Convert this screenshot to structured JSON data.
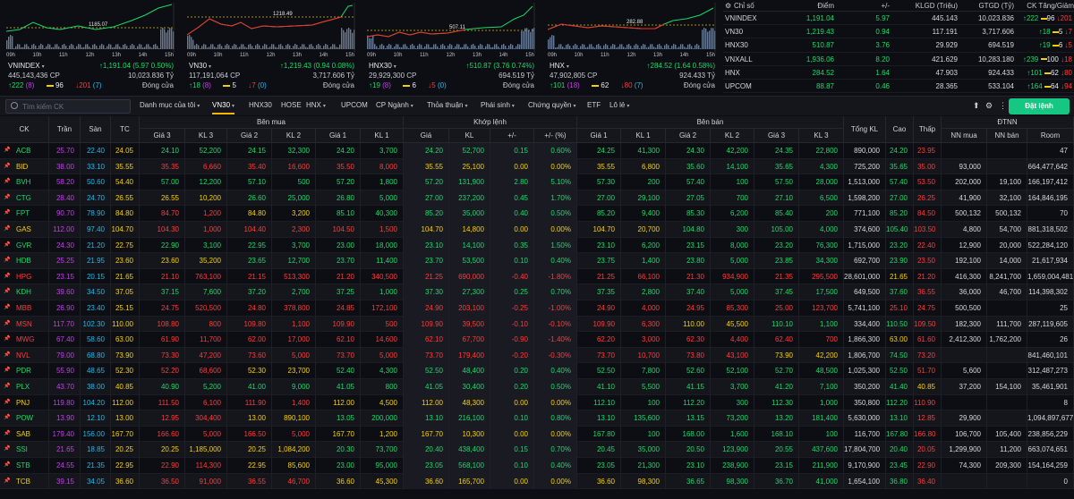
{
  "charts": [
    {
      "name": "VNINDEX",
      "value": "↑1,191.04 (5.97 0.50%)",
      "volume": "445,143,436 CP",
      "gtgd": "10,023.836 Tỷ",
      "up": "↑222",
      "up_ceil": "(8)",
      "ref": "96",
      "dn": "↓201",
      "dn_floor": "(7)",
      "status": "Đóng cửa",
      "ref_label": "1185.07",
      "times": [
        "09h",
        "10h",
        "11h",
        "12h",
        "13h",
        "14h",
        "15h"
      ]
    },
    {
      "name": "VN30",
      "value": "↑1,219.43 (0.94 0.08%)",
      "volume": "117,191,064 CP",
      "gtgd": "3,717.606 Tỷ",
      "up": "↑18",
      "up_ceil": "(8)",
      "ref": "5",
      "dn": "↓7",
      "dn_floor": "(0)",
      "status": "Đóng cửa",
      "ref_label": "1218.49",
      "times": [
        "09h",
        "10h",
        "11h",
        "12h",
        "13h",
        "14h",
        "15h"
      ]
    },
    {
      "name": "HNX30",
      "value": "↑510.87 (3.76 0.74%)",
      "volume": "29,929,300 CP",
      "gtgd": "694.519 Tỷ",
      "up": "↑19",
      "up_ceil": "(8)",
      "ref": "6",
      "dn": "↓5",
      "dn_floor": "(0)",
      "status": "Đóng cửa",
      "ref_label": "507.11",
      "times": [
        "09h",
        "10h",
        "11h",
        "12h",
        "13h",
        "14h",
        "15h"
      ]
    },
    {
      "name": "HNX",
      "value": "↑284.52 (1.64 0.58%)",
      "volume": "47,902,805 CP",
      "gtgd": "924.433 Tỷ",
      "up": "↑101",
      "up_ceil": "(18)",
      "ref": "62",
      "dn": "↓80",
      "dn_floor": "(7)",
      "status": "Đóng cửa",
      "ref_label": "282.88",
      "times": [
        "09h",
        "10h",
        "11h",
        "12h",
        "13h",
        "14h",
        "15h"
      ]
    }
  ],
  "index_table": {
    "headers": [
      "Chỉ số",
      "Điểm",
      "+/-",
      "KLGD (Triệu)",
      "GTGD (Tỷ)",
      "CK Tăng/Giảm"
    ],
    "rows": [
      {
        "name": "VNINDEX",
        "pt": "1,191.04",
        "chg": "5.97",
        "kl": "445.143",
        "gt": "10,023.836",
        "up": "↑222",
        "ref": "96",
        "dn": "↓201"
      },
      {
        "name": "VN30",
        "pt": "1,219.43",
        "chg": "0.94",
        "kl": "117.191",
        "gt": "3,717.606",
        "up": "↑18",
        "ref": "5",
        "dn": "↓7"
      },
      {
        "name": "HNX30",
        "pt": "510.87",
        "chg": "3.76",
        "kl": "29.929",
        "gt": "694.519",
        "up": "↑19",
        "ref": "6",
        "dn": "↓5"
      },
      {
        "name": "VNXALL",
        "pt": "1,936.06",
        "chg": "8.20",
        "kl": "421.629",
        "gt": "10,283.180",
        "up": "↑239",
        "ref": "100",
        "dn": "↓18"
      },
      {
        "name": "HNX",
        "pt": "284.52",
        "chg": "1.64",
        "kl": "47.903",
        "gt": "924.433",
        "up": "↑101",
        "ref": "62",
        "dn": "↓80"
      },
      {
        "name": "UPCOM",
        "pt": "88.87",
        "chg": "0.46",
        "kl": "28.365",
        "gt": "533.104",
        "up": "↑164",
        "ref": "64",
        "dn": "↓94"
      }
    ]
  },
  "toolbar": {
    "search_placeholder": "Tìm kiếm CK",
    "tabs": [
      "Danh mục của tôi",
      "VN30",
      "HNX30",
      "HOSE",
      "HNX",
      "UPCOM",
      "CP Ngành",
      "Thỏa thuận",
      "Phái sinh",
      "Chứng quyền",
      "ETF",
      "Lô lẻ"
    ],
    "buy_label": "Đặt lệnh"
  },
  "grid": {
    "group_headers": [
      "Bên mua",
      "Khớp lệnh",
      "Bên bán",
      "ĐTNN"
    ],
    "headers": [
      "CK",
      "Trần",
      "Sàn",
      "TC",
      "Giá 3",
      "KL 3",
      "Giá 2",
      "KL 2",
      "Giá 1",
      "KL 1",
      "Giá",
      "KL",
      "+/-",
      "+/- (%)",
      "Giá 1",
      "KL 1",
      "Giá 2",
      "KL 2",
      "Giá 3",
      "KL 3",
      "Tổng KL",
      "Cao",
      "Thấp",
      "NN mua",
      "NN bán",
      "Room"
    ],
    "rows": [
      [
        "ACB",
        "25.70",
        "22.40",
        "24.05",
        "24.10",
        "52,200",
        "24.15",
        "32,300",
        "24.20",
        "3,700",
        "24.20",
        "52,700",
        "0.15",
        "0.60%",
        "24.25",
        "41,300",
        "24.30",
        "42,200",
        "24.35",
        "22,800",
        "890,000",
        "24.20",
        "23.95",
        "",
        "",
        "47"
      ],
      [
        "BID",
        "38.00",
        "33.10",
        "35.55",
        "35.35",
        "6,660",
        "35.40",
        "16,600",
        "35.50",
        "8,000",
        "35.55",
        "25,100",
        "0.00",
        "0.00%",
        "35.55",
        "6,800",
        "35.60",
        "14,100",
        "35.65",
        "4,300",
        "725,200",
        "35.65",
        "35.00",
        "93,000",
        "",
        "664,477,642"
      ],
      [
        "BVH",
        "58.20",
        "50.60",
        "54.40",
        "57.00",
        "12,200",
        "57.10",
        "500",
        "57.20",
        "1,800",
        "57.20",
        "131,900",
        "2.80",
        "5.10%",
        "57.30",
        "200",
        "57.40",
        "100",
        "57.50",
        "28,000",
        "1,513,000",
        "57.40",
        "53.50",
        "202,000",
        "19,100",
        "166,197,412"
      ],
      [
        "CTG",
        "28.40",
        "24.70",
        "26.55",
        "26.55",
        "10,200",
        "26.60",
        "25,000",
        "26.80",
        "5,000",
        "27.00",
        "237,200",
        "0.45",
        "1.70%",
        "27.00",
        "29,100",
        "27.05",
        "700",
        "27.10",
        "6,500",
        "1,598,200",
        "27.00",
        "26.25",
        "41,900",
        "32,100",
        "164,846,195"
      ],
      [
        "FPT",
        "90.70",
        "78.90",
        "84.80",
        "84.70",
        "1,200",
        "84.80",
        "3,200",
        "85.10",
        "40,300",
        "85.20",
        "35,000",
        "0.40",
        "0.50%",
        "85.20",
        "9,400",
        "85.30",
        "6,200",
        "85.40",
        "200",
        "771,100",
        "85.20",
        "84.50",
        "500,132",
        "500,132",
        "70"
      ],
      [
        "GAS",
        "112.00",
        "97.40",
        "104.70",
        "104.30",
        "1,000",
        "104.40",
        "2,300",
        "104.50",
        "1,500",
        "104.70",
        "14,800",
        "0.00",
        "0.00%",
        "104.70",
        "20,700",
        "104.80",
        "300",
        "105.00",
        "4,000",
        "374,600",
        "105.40",
        "103.50",
        "4,800",
        "54,700",
        "881,318,502"
      ],
      [
        "GVR",
        "24.30",
        "21.20",
        "22.75",
        "22.90",
        "3,100",
        "22.95",
        "3,700",
        "23.00",
        "18,000",
        "23.10",
        "14,100",
        "0.35",
        "1.50%",
        "23.10",
        "6,200",
        "23.15",
        "8,000",
        "23.20",
        "76,300",
        "1,715,000",
        "23.20",
        "22.40",
        "12,900",
        "20,000",
        "522,284,120"
      ],
      [
        "HDB",
        "25.25",
        "21.95",
        "23.60",
        "23.60",
        "35,200",
        "23.65",
        "12,700",
        "23.70",
        "11,400",
        "23.70",
        "53,500",
        "0.10",
        "0.40%",
        "23.75",
        "1,400",
        "23.80",
        "5,000",
        "23.85",
        "34,300",
        "692,700",
        "23.90",
        "23.50",
        "192,100",
        "14,000",
        "21,617,934"
      ],
      [
        "HPG",
        "23.15",
        "20.15",
        "21.65",
        "21.10",
        "763,100",
        "21.15",
        "513,300",
        "21.20",
        "340,500",
        "21.25",
        "690,000",
        "-0.40",
        "-1.80%",
        "21.25",
        "66,100",
        "21.30",
        "934,900",
        "21.35",
        "295,500",
        "28,601,000",
        "21.65",
        "21.20",
        "416,300",
        "8,241,700",
        "1,659,004,481"
      ],
      [
        "KDH",
        "39.60",
        "34.50",
        "37.05",
        "37.15",
        "7,600",
        "37.20",
        "2,700",
        "37.25",
        "1,000",
        "37.30",
        "27,300",
        "0.25",
        "0.70%",
        "37.35",
        "2,800",
        "37.40",
        "5,000",
        "37.45",
        "17,500",
        "649,500",
        "37.60",
        "36.55",
        "36,000",
        "46,700",
        "114,398,302"
      ],
      [
        "MBB",
        "26.90",
        "23.40",
        "25.15",
        "24.75",
        "520,500",
        "24.80",
        "378,800",
        "24.85",
        "172,100",
        "24.90",
        "203,100",
        "-0.25",
        "-1.00%",
        "24.90",
        "4,000",
        "24.95",
        "85,300",
        "25.00",
        "123,700",
        "5,741,100",
        "25.10",
        "24.75",
        "500,500",
        "",
        "25"
      ],
      [
        "MSN",
        "117.70",
        "102.30",
        "110.00",
        "108.80",
        "800",
        "109.80",
        "1,100",
        "109.90",
        "500",
        "109.90",
        "39,500",
        "-0.10",
        "-0.10%",
        "109.90",
        "6,300",
        "110.00",
        "45,500",
        "110.10",
        "1,100",
        "334,400",
        "110.50",
        "109.50",
        "182,300",
        "111,700",
        "287,119,605"
      ],
      [
        "MWG",
        "67.40",
        "58.60",
        "63.00",
        "61.90",
        "11,700",
        "62.00",
        "17,000",
        "62.10",
        "14,600",
        "62.10",
        "67,700",
        "-0.90",
        "-1.40%",
        "62.20",
        "3,000",
        "62.30",
        "4,400",
        "62.40",
        "700",
        "1,866,300",
        "63.00",
        "61.60",
        "2,412,300",
        "1,762,200",
        "26"
      ],
      [
        "NVL",
        "79.00",
        "68.80",
        "73.90",
        "73.30",
        "47,200",
        "73.60",
        "5,000",
        "73.70",
        "5,000",
        "73.70",
        "179,400",
        "-0.20",
        "-0.30%",
        "73.70",
        "10,700",
        "73.80",
        "43,100",
        "73.90",
        "42,200",
        "1,806,700",
        "74.50",
        "73.20",
        "",
        "",
        "841,460,101"
      ],
      [
        "PDR",
        "55.90",
        "48.65",
        "52.30",
        "52.20",
        "68,600",
        "52.30",
        "23,700",
        "52.40",
        "4,300",
        "52.50",
        "48,400",
        "0.20",
        "0.40%",
        "52.50",
        "7,800",
        "52.60",
        "52,100",
        "52.70",
        "48,500",
        "1,025,300",
        "52.50",
        "51.70",
        "5,600",
        "",
        "312,487,273"
      ],
      [
        "PLX",
        "43.70",
        "38.00",
        "40.85",
        "40.90",
        "5,200",
        "41.00",
        "9,000",
        "41.05",
        "800",
        "41.05",
        "30,400",
        "0.20",
        "0.50%",
        "41.10",
        "5,500",
        "41.15",
        "3,700",
        "41.20",
        "7,100",
        "350,200",
        "41.40",
        "40.85",
        "37,200",
        "154,100",
        "35,461,901"
      ],
      [
        "PNJ",
        "119.80",
        "104.20",
        "112.00",
        "111.50",
        "6,100",
        "111.90",
        "1,400",
        "112.00",
        "4,500",
        "112.00",
        "48,300",
        "0.00",
        "0.00%",
        "112.10",
        "100",
        "112.20",
        "300",
        "112.30",
        "1,000",
        "350,800",
        "112.20",
        "110.90",
        "",
        "",
        "8"
      ],
      [
        "POW",
        "13.90",
        "12.10",
        "13.00",
        "12.95",
        "304,400",
        "13.00",
        "890,100",
        "13.05",
        "200,000",
        "13.10",
        "216,100",
        "0.10",
        "0.80%",
        "13.10",
        "135,600",
        "13.15",
        "73,200",
        "13.20",
        "181,400",
        "5,630,000",
        "13.10",
        "12.85",
        "29,900",
        "",
        "1,094,897,677"
      ],
      [
        "SAB",
        "179.40",
        "156.00",
        "167.70",
        "166.60",
        "5,000",
        "166.50",
        "5,000",
        "167.70",
        "1,200",
        "167.70",
        "10,300",
        "0.00",
        "0.00%",
        "167.80",
        "100",
        "168.00",
        "1,600",
        "168.10",
        "100",
        "116,700",
        "167.80",
        "166.80",
        "106,700",
        "105,400",
        "238,856,229"
      ],
      [
        "SSI",
        "21.65",
        "18.85",
        "20.25",
        "20.25",
        "1,185,000",
        "20.25",
        "1,084,200",
        "20.30",
        "73,700",
        "20.40",
        "438,400",
        "0.15",
        "0.70%",
        "20.45",
        "35,000",
        "20.50",
        "123,900",
        "20.55",
        "437,600",
        "17,804,700",
        "20.40",
        "20.05",
        "1,299,900",
        "11,200",
        "663,074,651"
      ],
      [
        "STB",
        "24.55",
        "21.35",
        "22.95",
        "22.90",
        "114,300",
        "22.95",
        "85,600",
        "23.00",
        "95,000",
        "23.05",
        "568,100",
        "0.10",
        "0.40%",
        "23.05",
        "21,300",
        "23.10",
        "238,900",
        "23.15",
        "211,900",
        "9,170,900",
        "23.45",
        "22.90",
        "74,300",
        "209,300",
        "154,164,259"
      ],
      [
        "TCB",
        "39.15",
        "34.05",
        "36.60",
        "36.50",
        "91,000",
        "36.55",
        "46,700",
        "36.60",
        "45,300",
        "36.60",
        "165,700",
        "0.00",
        "0.00%",
        "36.60",
        "98,300",
        "36.65",
        "98,300",
        "36.70",
        "41,000",
        "1,654,100",
        "36.80",
        "36.40",
        "",
        "",
        "0"
      ]
    ]
  },
  "colors": {
    "up": "#19d96b",
    "down": "#ff3a3a",
    "ref": "#f5d000",
    "ceil": "#c33dea",
    "floor": "#22b7e8",
    "buy_button": "#16c784",
    "tab_active": "#f7b500"
  }
}
